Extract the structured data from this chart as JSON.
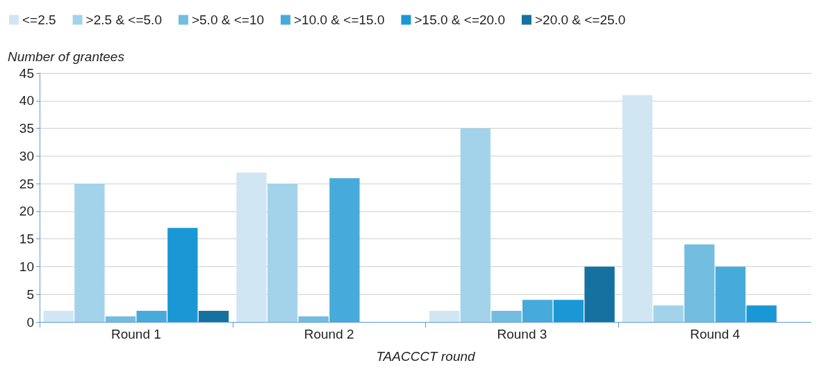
{
  "chart_data": {
    "type": "bar",
    "ylabel": "Number of grantees",
    "xlabel": "TAACCCT round",
    "categories": [
      "Round 1",
      "Round 2",
      "Round 3",
      "Round 4"
    ],
    "series": [
      {
        "name": "<=2.5",
        "color": "#d0e6f3",
        "values": [
          2,
          27,
          2,
          41
        ]
      },
      {
        "name": ">2.5 & <=5.0",
        "color": "#a3d3eb",
        "values": [
          25,
          25,
          35,
          3
        ]
      },
      {
        "name": ">5.0 & <=10",
        "color": "#72bde0",
        "values": [
          1,
          1,
          2,
          14
        ]
      },
      {
        "name": ">10.0 & <=15.0",
        "color": "#46abdb",
        "values": [
          2,
          26,
          4,
          10
        ]
      },
      {
        "name": ">15.0 & <=20.0",
        "color": "#1a98d5",
        "values": [
          17,
          null,
          4,
          3
        ]
      },
      {
        "name": ">20.0 & <=25.0",
        "color": "#1572a0",
        "values": [
          2,
          null,
          10,
          null
        ]
      }
    ],
    "ylim": [
      0,
      45
    ],
    "yticks": [
      0,
      5,
      10,
      15,
      20,
      25,
      30,
      35,
      40,
      45
    ],
    "grid": "y",
    "legend": "top left"
  }
}
